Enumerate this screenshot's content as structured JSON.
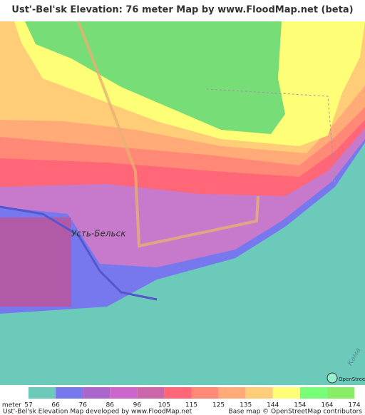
{
  "header": {
    "title": "Ust'-Bel'sk Elevation: 76 meter Map by www.FloodMap.net (beta)"
  },
  "map": {
    "place_label": "Усть-Бельск",
    "river_label": "Кама",
    "attribution_logo": "OpenStreetMap"
  },
  "legend": {
    "unit": "meter",
    "ticks": [
      57,
      66,
      76,
      86,
      96,
      105,
      115,
      125,
      135,
      144,
      154,
      164,
      174
    ],
    "colors": [
      "#6ccabb",
      "#7777ee",
      "#aa66cc",
      "#cc66cc",
      "#cc66aa",
      "#ff6677",
      "#ff8877",
      "#ffaa77",
      "#ffcc77",
      "#ffff77",
      "#77ff77",
      "#88ee66"
    ]
  },
  "footer": {
    "left": "Ust'-Bel'sk Elevation Map developed by www.FloodMap.net",
    "right": "Base map © OpenStreetMap contributors"
  }
}
